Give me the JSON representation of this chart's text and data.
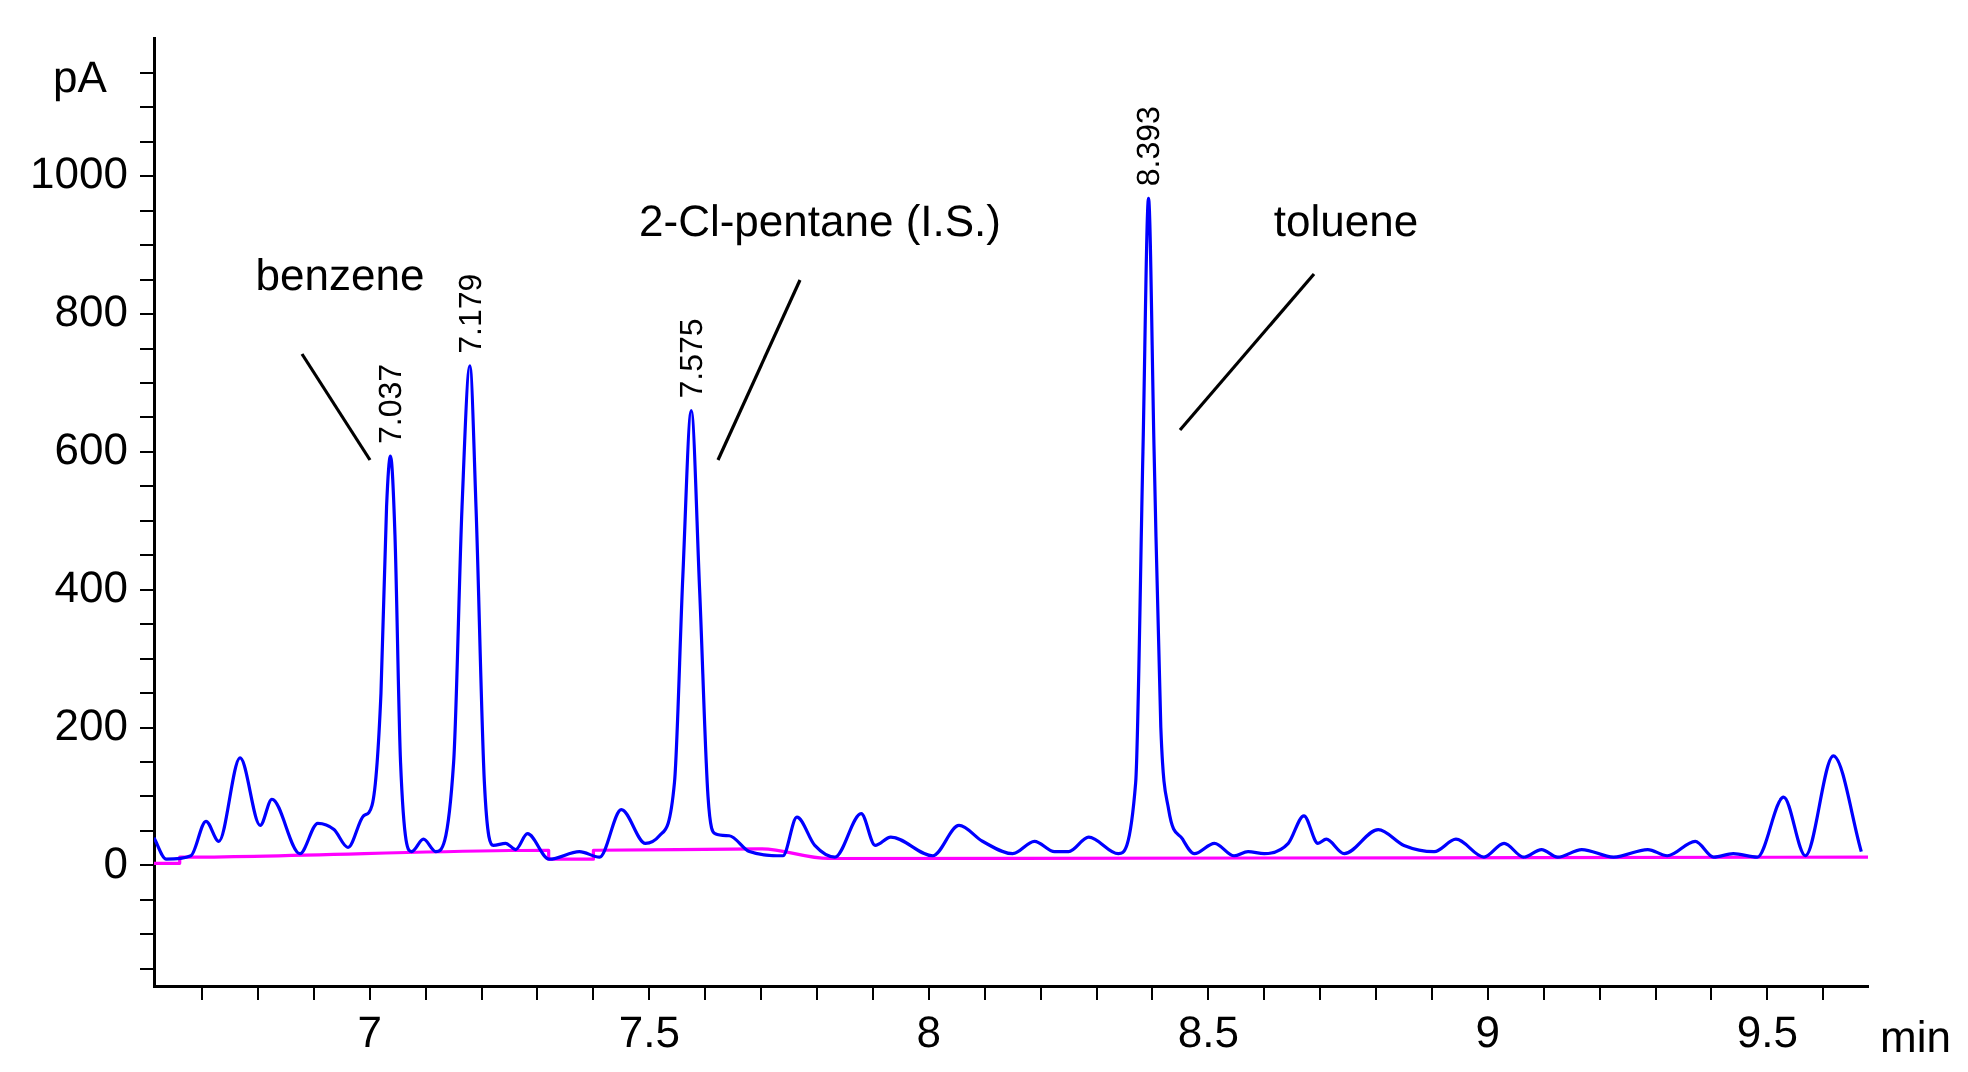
{
  "chart_data": {
    "type": "line",
    "xlabel": "min",
    "ylabel": "pA",
    "xlim": [
      6.614,
      9.68
    ],
    "ylim": [
      -175,
      1200
    ],
    "xticks": [
      {
        "value": 6.7,
        "label": null
      },
      {
        "value": 6.8,
        "label": null
      },
      {
        "value": 6.9,
        "label": null
      },
      7,
      {
        "value": 7.1,
        "label": null
      },
      {
        "value": 7.2,
        "label": null
      },
      {
        "value": 7.3,
        "label": null
      },
      {
        "value": 7.4,
        "label": null
      },
      7.5,
      {
        "value": 7.6,
        "label": null
      },
      {
        "value": 7.7,
        "label": null
      },
      {
        "value": 7.8,
        "label": null
      },
      {
        "value": 7.9,
        "label": null
      },
      8,
      {
        "value": 8.1,
        "label": null
      },
      {
        "value": 8.2,
        "label": null
      },
      {
        "value": 8.3,
        "label": null
      },
      {
        "value": 8.4,
        "label": null
      },
      8.5,
      {
        "value": 8.6,
        "label": null
      },
      {
        "value": 8.7,
        "label": null
      },
      {
        "value": 8.8,
        "label": null
      },
      {
        "value": 8.9,
        "label": null
      },
      9,
      {
        "value": 9.1,
        "label": null
      },
      {
        "value": 9.2,
        "label": null
      },
      {
        "value": 9.3,
        "label": null
      },
      {
        "value": 9.4,
        "label": null
      },
      9.5,
      {
        "value": 9.6,
        "label": null
      }
    ],
    "yticks": [
      {
        "value": -150,
        "label": null
      },
      {
        "value": -100,
        "label": null
      },
      {
        "value": -50,
        "label": null
      },
      0,
      {
        "value": 50,
        "label": null
      },
      {
        "value": 100,
        "label": null
      },
      {
        "value": 150,
        "label": null
      },
      200,
      {
        "value": 250,
        "label": null
      },
      {
        "value": 300,
        "label": null
      },
      {
        "value": 350,
        "label": null
      },
      400,
      {
        "value": 450,
        "label": null
      },
      {
        "value": 500,
        "label": null
      },
      {
        "value": 550,
        "label": null
      },
      600,
      {
        "value": 650,
        "label": null
      },
      {
        "value": 700,
        "label": null
      },
      {
        "value": 750,
        "label": null
      },
      800,
      {
        "value": 850,
        "label": null
      },
      {
        "value": 900,
        "label": null
      },
      {
        "value": 950,
        "label": null
      },
      1000,
      {
        "value": 1050,
        "label": null
      },
      {
        "value": 1100,
        "label": null
      },
      {
        "value": 1150,
        "label": null
      }
    ],
    "grid": false,
    "series": [
      {
        "type": "line",
        "color": "#0000ff",
        "x": [
          6.614,
          6.636,
          6.68,
          6.707,
          6.73,
          6.768,
          6.804,
          6.825,
          6.875,
          6.907,
          6.936,
          6.961,
          6.989,
          7.004,
          7.02,
          7.03,
          7.037,
          7.045,
          7.055,
          7.075,
          7.096,
          7.118,
          7.15,
          7.165,
          7.179,
          7.19,
          7.205,
          7.221,
          7.243,
          7.261,
          7.282,
          7.321,
          7.375,
          7.411,
          7.45,
          7.493,
          7.518,
          7.545,
          7.56,
          7.575,
          7.59,
          7.605,
          7.618,
          7.643,
          7.679,
          7.739,
          7.764,
          7.796,
          7.832,
          7.879,
          7.904,
          7.932,
          8.007,
          8.054,
          8.096,
          8.15,
          8.189,
          8.225,
          8.25,
          8.286,
          8.339,
          8.37,
          8.383,
          8.393,
          8.403,
          8.415,
          8.429,
          8.454,
          8.475,
          8.511,
          8.546,
          8.571,
          8.6,
          8.643,
          8.671,
          8.696,
          8.711,
          8.743,
          8.804,
          8.85,
          8.904,
          8.943,
          8.993,
          9.029,
          9.064,
          9.096,
          9.125,
          9.168,
          9.225,
          9.286,
          9.321,
          9.371,
          9.404,
          9.439,
          9.482,
          9.529,
          9.568,
          9.618,
          9.668
        ],
        "values": [
          40,
          9,
          14,
          64,
          35,
          156,
          58,
          96,
          17,
          61,
          52,
          26,
          72,
          87,
          250,
          520,
          594,
          480,
          150,
          20,
          38,
          20,
          150,
          520,
          725,
          520,
          120,
          29,
          32,
          23,
          46,
          9,
          20,
          12,
          81,
          32,
          43,
          120,
          420,
          660,
          400,
          100,
          46,
          43,
          20,
          14,
          70,
          29,
          12,
          75,
          29,
          41,
          14,
          58,
          35,
          17,
          35,
          20,
          20,
          41,
          17,
          120,
          600,
          968,
          600,
          200,
          81,
          38,
          17,
          32,
          14,
          20,
          17,
          32,
          72,
          32,
          38,
          17,
          52,
          29,
          20,
          38,
          12,
          32,
          12,
          23,
          12,
          23,
          12,
          23,
          14,
          35,
          12,
          17,
          12,
          99,
          14,
          159,
          20
        ]
      },
      {
        "type": "line",
        "color": "#ff00ff",
        "x": [
          6.614,
          6.66,
          6.66,
          7.32,
          7.32,
          7.4,
          7.4,
          7.7,
          7.82,
          9.68
        ],
        "values": [
          3,
          3,
          12,
          22,
          9,
          9,
          22,
          24,
          10,
          12
        ]
      }
    ],
    "annotations": [
      {
        "text": "7.037",
        "x": 7.037,
        "y": 594
      },
      {
        "text": "7.179",
        "x": 7.179,
        "y": 725
      },
      {
        "text": "7.575",
        "x": 7.575,
        "y": 660
      },
      {
        "text": "8.393",
        "x": 8.393,
        "y": 968
      },
      "benzene",
      "2-Cl-pentane (I.S.)",
      "toluene"
    ]
  }
}
